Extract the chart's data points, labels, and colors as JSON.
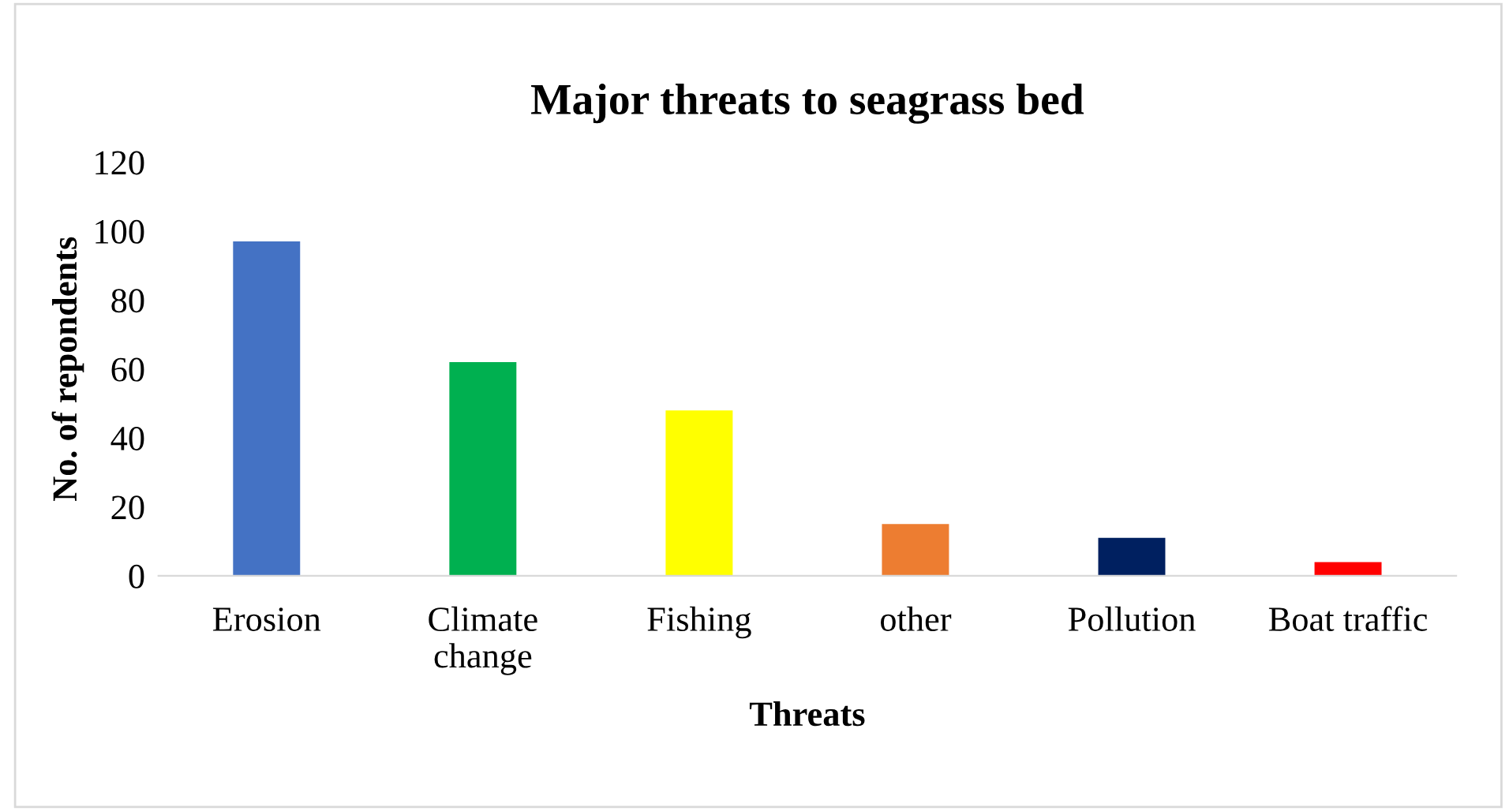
{
  "chart_data": {
    "type": "bar",
    "title": "Major threats to seagrass bed",
    "xlabel": "Threats",
    "ylabel": "No. of repondents",
    "categories": [
      "Erosion",
      "Climate\nchange",
      "Fishing",
      "other",
      "Pollution",
      "Boat traffic"
    ],
    "values": [
      97,
      62,
      48,
      15,
      11,
      4
    ],
    "colors": [
      "#4472c4",
      "#00b050",
      "#ffff00",
      "#ed7d31",
      "#002060",
      "#ff0000"
    ],
    "ylim": [
      0,
      120
    ],
    "yticks": [
      0,
      20,
      40,
      60,
      80,
      100,
      120
    ],
    "grid": false,
    "legend": false
  }
}
